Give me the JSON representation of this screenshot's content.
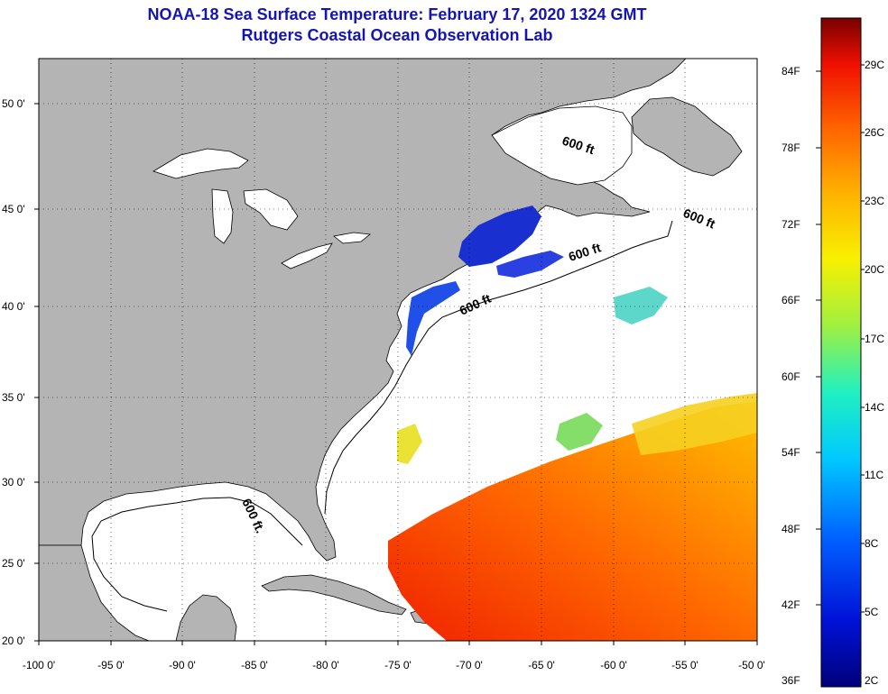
{
  "title": {
    "line1": "NOAA-18 Sea Surface Temperature:  February 17, 2020 1324 GMT",
    "line2": "Rutgers Coastal Ocean Observation Lab"
  },
  "axes": {
    "lat_labels": [
      "50 0'",
      "45 0'",
      "40 0'",
      "35 0'",
      "30 0'",
      "25 0'",
      "20 0'"
    ],
    "lon_labels": [
      "-100 0'",
      "-95 0'",
      "-90 0'",
      "-85 0'",
      "-80 0'",
      "-75 0'",
      "-70 0'",
      "-65 0'",
      "-60 0'",
      "-55 0'",
      "-50 0'"
    ]
  },
  "depth_contour_label": "600 ft",
  "depth_contour_label_gulf": "600 ft.",
  "colorbar": {
    "fahrenheit_labels": [
      "84F",
      "78F",
      "72F",
      "66F",
      "60F",
      "54F",
      "48F",
      "42F",
      "36F"
    ],
    "celsius_labels": [
      "29C",
      "26C",
      "23C",
      "20C",
      "17C",
      "14C",
      "11C",
      "8C",
      "5C",
      "2C"
    ]
  },
  "colors": {
    "land": "#b4b4b4",
    "water": "#ffffff",
    "title": "#1515b4",
    "warm": "#ff4a00",
    "cold": "#1a2fd0"
  }
}
